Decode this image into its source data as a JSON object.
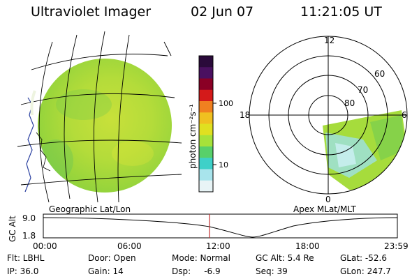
{
  "header": {
    "instrument": "Ultraviolet Imager",
    "date": "02 Jun 07",
    "time": "11:21:05 UT"
  },
  "left_panel": {
    "caption": "Geographic Lat/Lon"
  },
  "right_panel": {
    "caption": "Apex  MLat/MLT",
    "mlt_labels": {
      "top": "12",
      "left": "18",
      "right": "6",
      "bottom": "0"
    },
    "lat_labels": [
      "60",
      "70",
      "80"
    ]
  },
  "colorbar": {
    "label": "photon cm⁻²s⁻¹",
    "ticks": [
      "100",
      "10"
    ],
    "colors": [
      "#2a0a3a",
      "#4a1060",
      "#8a0025",
      "#d41a1a",
      "#f08020",
      "#f0c020",
      "#e0e020",
      "#a6e23a",
      "#58d06a",
      "#3ed0c8",
      "#a8e4ec",
      "#e8f4f6"
    ]
  },
  "altitude_strip": {
    "ylabel": "GC Alt",
    "y_ticks": [
      "9.0",
      "1.8"
    ],
    "x_ticks": [
      "00:00",
      "06:00",
      "12:00",
      "18:00",
      "23:59"
    ],
    "marker_time": "11:21"
  },
  "status": {
    "flt": "Flt: LBHL",
    "ip": "IP: 36.0",
    "door": "Door: Open",
    "gain": "Gain: 14",
    "mode": "Mode: Normal",
    "dsp": "Dsp:     -6.9",
    "gc_alt": "GC Alt: 5.4 Re",
    "seq": "Seq: 39",
    "glat": "GLat: -52.6",
    "glon": "GLon: 247.7"
  }
}
